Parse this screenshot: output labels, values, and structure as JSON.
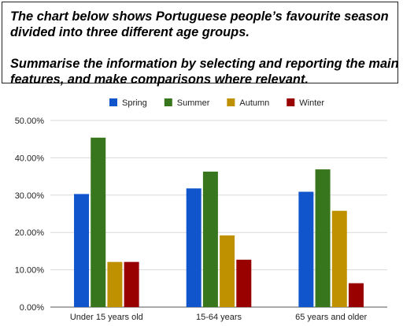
{
  "task": {
    "line1": "The chart below shows Portuguese people’s favourite season",
    "line2": "divided into three different age groups.",
    "line3": "Summarise the information by selecting and reporting the main",
    "line4": "features, and make comparisons where relevant."
  },
  "chart_data": {
    "type": "bar",
    "categories": [
      "Under 15 years old",
      "15-64 years",
      "65 years and older"
    ],
    "series": [
      {
        "name": "Spring",
        "color": "#1155cc",
        "values": [
          30.3,
          31.8,
          30.9
        ]
      },
      {
        "name": "Summer",
        "color": "#38761d",
        "values": [
          45.4,
          36.3,
          36.9
        ]
      },
      {
        "name": "Autumn",
        "color": "#bf9000",
        "values": [
          12.1,
          19.2,
          25.8
        ]
      },
      {
        "name": "Winter",
        "color": "#990000",
        "values": [
          12.1,
          12.7,
          6.4
        ]
      }
    ],
    "y_ticks": [
      "0.00%",
      "10.00%",
      "20.00%",
      "30.00%",
      "40.00%",
      "50.00%"
    ],
    "ylim": [
      0,
      50
    ],
    "legend_position": "top",
    "grid": true
  }
}
